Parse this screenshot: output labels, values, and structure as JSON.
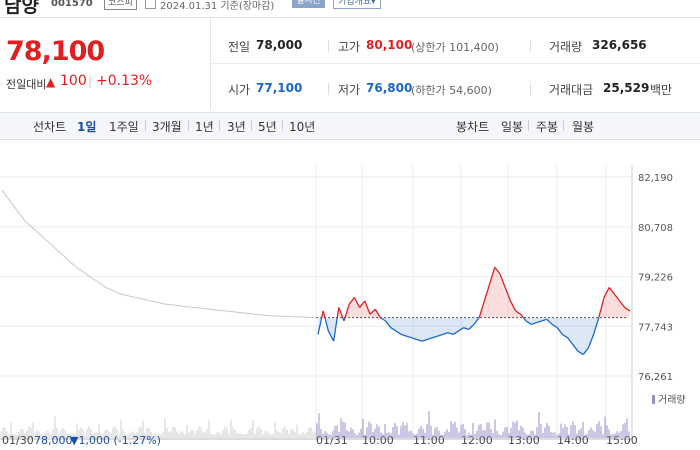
{
  "header": {
    "stock_name": "남양",
    "stock_code": "001570",
    "market_badge": "코스피",
    "base_date": "2024.01.31 기준(장마감)",
    "realtime_label": "실시간",
    "company_label": "기업개요▾"
  },
  "price": {
    "current": "78,100",
    "change_label": "전일대비",
    "change_icon": "triangle-up-icon",
    "change_value": "100",
    "change_rate": "+0.13%",
    "up_color": "#e02020",
    "down_color": "#1a66cc"
  },
  "info": {
    "prev_close_label": "전일",
    "prev_close": "78,000",
    "high_label": "고가",
    "high": "80,100",
    "upper_limit": "(상한가 101,400)",
    "volume_label": "거래량",
    "volume": "326,656",
    "open_label": "시가",
    "open": "77,100",
    "low_label": "저가",
    "low": "76,800",
    "lower_limit": "(하한가 54,600)",
    "amount_label": "거래대금",
    "amount": "25,529",
    "amount_unit": "백만"
  },
  "periods": {
    "line_label": "선차트",
    "line_items": [
      "1일",
      "1주일",
      "3개월",
      "1년",
      "3년",
      "5년",
      "10년"
    ],
    "selected": "1일",
    "candle_label": "봉차트",
    "candle_items": [
      "일봉",
      "주봉",
      "월봉"
    ]
  },
  "chart_data": {
    "type": "line",
    "y_ticks": [
      "82,190",
      "80,708",
      "79,226",
      "77,743",
      "76,261"
    ],
    "ylim": [
      76261,
      82190
    ],
    "baseline": 78000,
    "x_ticks": [
      "01/31",
      "10:00",
      "11:00",
      "12:00",
      "13:00",
      "14:00",
      "15:00"
    ],
    "volume_legend": "거래량",
    "prev_day_label": "01/30",
    "prev_day_close": "78,000",
    "prev_day_change": "▼1,000 (-1.27%)",
    "prev_day": [
      81800,
      81500,
      81200,
      80900,
      80700,
      80500,
      80300,
      80100,
      79900,
      79700,
      79500,
      79350,
      79200,
      79050,
      78900,
      78800,
      78700,
      78650,
      78600,
      78550,
      78500,
      78450,
      78400,
      78380,
      78350,
      78320,
      78300,
      78280,
      78250,
      78220,
      78200,
      78180,
      78150,
      78130,
      78100,
      78080,
      78060,
      78050,
      78040,
      78030,
      78020,
      78010,
      78000
    ],
    "today": [
      77500,
      78200,
      77600,
      77300,
      78300,
      77900,
      78400,
      78600,
      78300,
      78500,
      78100,
      78250,
      78000,
      77900,
      77700,
      77600,
      77500,
      77450,
      77400,
      77350,
      77300,
      77350,
      77400,
      77450,
      77500,
      77550,
      77500,
      77600,
      77700,
      77650,
      77800,
      78000,
      78500,
      79000,
      79500,
      79300,
      78900,
      78500,
      78200,
      78100,
      77900,
      77800,
      77850,
      77900,
      77950,
      77800,
      77700,
      77500,
      77400,
      77200,
      77000,
      76900,
      77100,
      77500,
      78000,
      78600,
      78900,
      78700,
      78500,
      78300,
      78200
    ]
  }
}
